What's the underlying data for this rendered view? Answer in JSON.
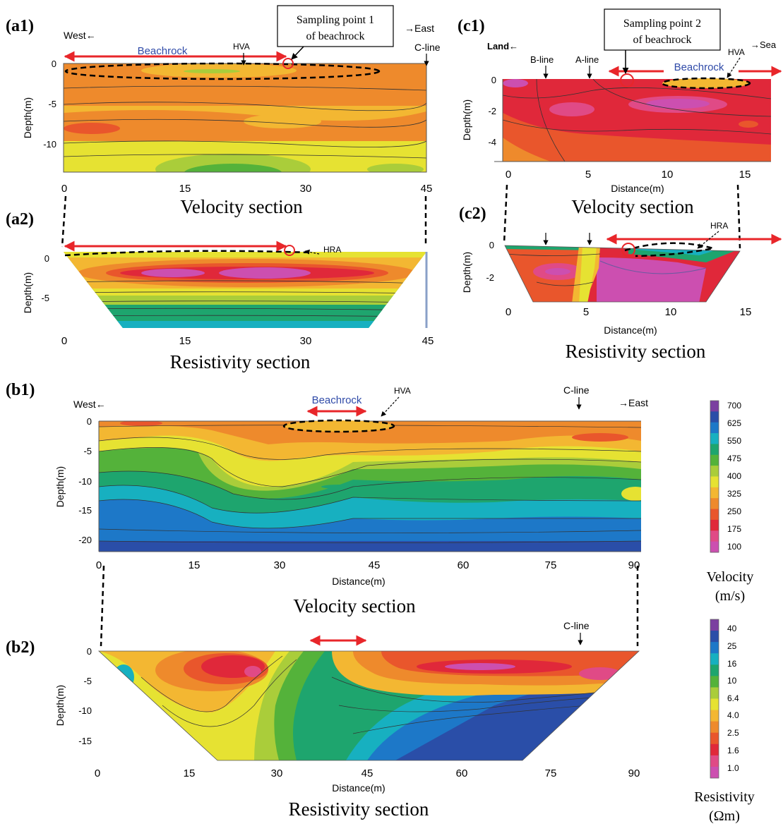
{
  "panels": {
    "a1": {
      "label": "(a1)",
      "west": "West←",
      "east": "→East",
      "beachrock": "Beachrock",
      "hva": "HVA",
      "cline": "C-line",
      "callout": [
        "Sampling point 1",
        "of beachrock"
      ],
      "ylabel": "Depth(m)",
      "yticks": [
        "0",
        "-5",
        "-10"
      ],
      "xticks": [
        "0",
        "15",
        "30",
        "45"
      ],
      "caption": "Velocity section"
    },
    "a2": {
      "label": "(a2)",
      "hra": "HRA",
      "ylabel": "Depth(m)",
      "yticks": [
        "0",
        "-5"
      ],
      "xticks": [
        "0",
        "15",
        "30",
        "45"
      ],
      "caption": "Resistivity section"
    },
    "b1": {
      "label": "(b1)",
      "west": "West←",
      "east": "→East",
      "beachrock": "Beachrock",
      "hva": "HVA",
      "cline": "C-line",
      "ylabel": "Depth(m)",
      "yticks": [
        "0",
        "-5",
        "-10",
        "-15",
        "-20"
      ],
      "xticks": [
        "0",
        "15",
        "30",
        "45",
        "60",
        "75",
        "90"
      ],
      "xlabel": "Distance(m)",
      "caption": "Velocity section"
    },
    "b2": {
      "label": "(b2)",
      "cline": "C-line",
      "ylabel": "Depth(m)",
      "yticks": [
        "0",
        "-5",
        "-10",
        "-15"
      ],
      "xticks": [
        "0",
        "15",
        "30",
        "45",
        "60",
        "75",
        "90"
      ],
      "xlabel": "Distance(m)",
      "caption": "Resistivity section"
    },
    "c1": {
      "label": "(c1)",
      "land": "Land←",
      "sea": "→Sea",
      "bline": "B-line",
      "aline": "A-line",
      "hva": "HVA",
      "beachrock": "Beachrock",
      "callout": [
        "Sampling point 2",
        "of beachrock"
      ],
      "ylabel": "Depth(m)",
      "yticks": [
        "0",
        "-2",
        "-4"
      ],
      "xticks": [
        "0",
        "5",
        "10",
        "15"
      ],
      "xlabel": "Distance(m)",
      "caption": "Velocity section"
    },
    "c2": {
      "label": "(c2)",
      "hra": "HRA",
      "ylabel": "Depth(m)",
      "yticks": [
        "0",
        "-2"
      ],
      "xticks": [
        "0",
        "5",
        "10",
        "15"
      ],
      "xlabel": "Distance(m)",
      "caption": "Resistivity section"
    }
  },
  "legend_velocity": {
    "values": [
      "700",
      "625",
      "550",
      "475",
      "400",
      "325",
      "250",
      "175",
      "100"
    ],
    "title": [
      "Velocity",
      "(m/s)"
    ],
    "colors": [
      "#7b3fa0",
      "#2a4ea8",
      "#1d78c8",
      "#17b0c0",
      "#1ea56e",
      "#54b23a",
      "#aacd3a",
      "#e6e232",
      "#f3b732",
      "#ee8a2c",
      "#e9562c",
      "#e0283a",
      "#e04a86",
      "#cc4fb0"
    ]
  },
  "legend_resistivity": {
    "values": [
      "40",
      "25",
      "16",
      "10",
      "6.4",
      "4.0",
      "2.5",
      "1.6",
      "1.0"
    ],
    "title": [
      "Resistivity",
      "(Ωm)"
    ],
    "colors": [
      "#7b3fa0",
      "#2a4ea8",
      "#1d78c8",
      "#17b0c0",
      "#1ea56e",
      "#54b23a",
      "#aacd3a",
      "#e6e232",
      "#f3b732",
      "#ee8a2c",
      "#e9562c",
      "#e0283a",
      "#e04a86",
      "#cc4fb0"
    ]
  }
}
